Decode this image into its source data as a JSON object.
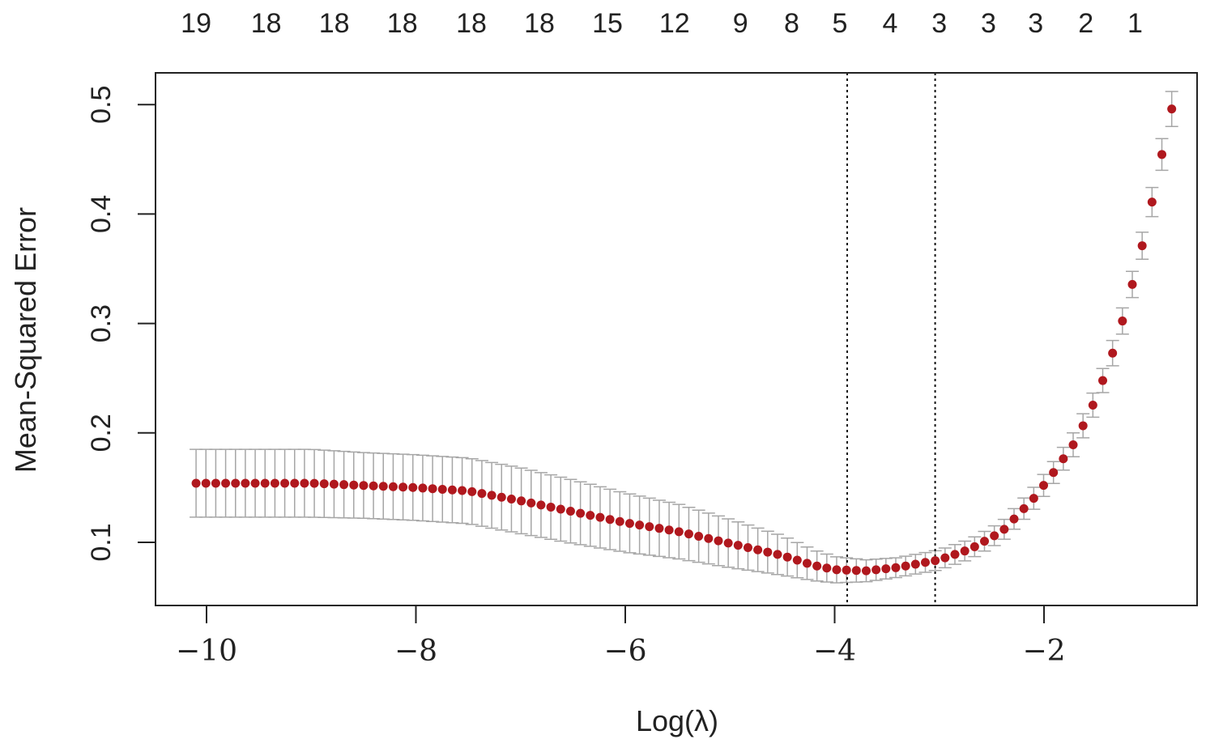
{
  "chart_data": {
    "type": "scatter",
    "title": "",
    "xlabel": "Log(λ)",
    "ylabel": "Mean-Squared Error",
    "xlim": [
      -10.5,
      -0.5
    ],
    "ylim": [
      0.045,
      0.53
    ],
    "x_ticks": [
      -10,
      -8,
      -6,
      -4,
      -2
    ],
    "x_tick_labels": [
      "−10",
      "−8",
      "−6",
      "−4",
      "−2"
    ],
    "y_ticks": [
      0.1,
      0.2,
      0.3,
      0.4,
      0.5
    ],
    "y_tick_labels": [
      "0.1",
      "0.2",
      "0.3",
      "0.4",
      "0.5"
    ],
    "top_axis": {
      "label": "",
      "positions": [
        -10.1,
        -9.43,
        -8.78,
        -8.13,
        -7.47,
        -6.82,
        -6.17,
        -5.53,
        -4.9,
        -4.41,
        -3.95,
        -3.47,
        -3.0,
        -2.53,
        -2.08,
        -1.6,
        -1.13
      ],
      "labels": [
        "19",
        "18",
        "18",
        "18",
        "18",
        "18",
        "15",
        "12",
        "9",
        "8",
        "5",
        "4",
        "3",
        "3",
        "3",
        "2",
        "1"
      ]
    },
    "vlines": [
      -3.88,
      -3.04
    ],
    "grid": false,
    "legend": "none",
    "colors": {
      "points": "#b0181e",
      "error_bars": "#a6a6a6",
      "frame": "#222222",
      "vlines": "#111111"
    },
    "knots": [
      [
        -10.1,
        0.154,
        0.031
      ],
      [
        -9.0,
        0.154,
        0.031
      ],
      [
        -8.5,
        0.152,
        0.03
      ],
      [
        -8.0,
        0.15,
        0.03
      ],
      [
        -7.5,
        0.147,
        0.03
      ],
      [
        -7.0,
        0.138,
        0.03
      ],
      [
        -6.5,
        0.128,
        0.029
      ],
      [
        -6.0,
        0.118,
        0.027
      ],
      [
        -5.5,
        0.11,
        0.025
      ],
      [
        -5.0,
        0.099,
        0.022
      ],
      [
        -4.5,
        0.088,
        0.018
      ],
      [
        -4.2,
        0.079,
        0.014
      ],
      [
        -4.0,
        0.075,
        0.012
      ],
      [
        -3.7,
        0.074,
        0.01
      ],
      [
        -3.4,
        0.077,
        0.009
      ],
      [
        -3.0,
        0.084,
        0.009
      ],
      [
        -2.7,
        0.094,
        0.009
      ],
      [
        -2.4,
        0.11,
        0.009
      ],
      [
        -2.1,
        0.14,
        0.01
      ],
      [
        -1.9,
        0.165,
        0.01
      ],
      [
        -1.7,
        0.192,
        0.011
      ],
      [
        -1.5,
        0.232,
        0.011
      ],
      [
        -1.4,
        0.258,
        0.011
      ],
      [
        -1.3,
        0.285,
        0.012
      ],
      [
        -1.2,
        0.32,
        0.012
      ],
      [
        -1.1,
        0.356,
        0.012
      ],
      [
        -1.0,
        0.396,
        0.013
      ],
      [
        -0.9,
        0.443,
        0.014
      ],
      [
        -0.78,
        0.496,
        0.016
      ]
    ]
  }
}
